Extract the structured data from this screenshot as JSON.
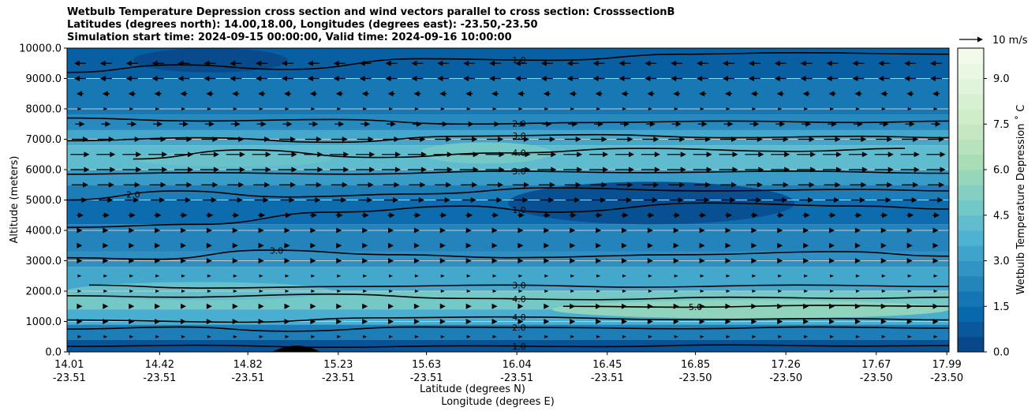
{
  "titles": {
    "line1": "Wetbulb Temperature Depression cross section and wind vectors parallel to cross section: CrosssectionB",
    "line2": "Latitudes (degrees north): 14.00,18.00, Longitudes (degrees east): -23.50,-23.50",
    "line3": "Simulation start time: 2024-09-15 00:00:00, Valid time: 2024-09-16 10:00:00"
  },
  "colors": {
    "colormap": [
      "#084081",
      "#0868ac",
      "#2b8cbe",
      "#4eb3d3",
      "#7bccc4",
      "#a8ddb5",
      "#ccebc5",
      "#e0f3db",
      "#f7fcf0"
    ],
    "contour_line": "#000000",
    "gridline": "#c8c8c8",
    "terrain": "#000000"
  },
  "chart_data": {
    "type": "heatmap",
    "subtype": "cross-section filled contour with wind vectors",
    "xlabel_lat": "Latitude (degrees N)",
    "xlabel_lon": "Longitude (degrees E)",
    "ylabel": "Altitude (meters)",
    "colorbar_label": "Wetbulb Temperature Depression ˚ C",
    "xlim": [
      14.0,
      18.0
    ],
    "ylim": [
      0,
      10000
    ],
    "x_ticks": [
      {
        "lat": "14.01",
        "lon": "-23.51"
      },
      {
        "lat": "14.42",
        "lon": "-23.51"
      },
      {
        "lat": "14.82",
        "lon": "-23.51"
      },
      {
        "lat": "15.23",
        "lon": "-23.51"
      },
      {
        "lat": "15.63",
        "lon": "-23.51"
      },
      {
        "lat": "16.04",
        "lon": "-23.51"
      },
      {
        "lat": "16.45",
        "lon": "-23.51"
      },
      {
        "lat": "16.85",
        "lon": "-23.50"
      },
      {
        "lat": "17.26",
        "lon": "-23.50"
      },
      {
        "lat": "17.67",
        "lon": "-23.50"
      },
      {
        "lat": "17.99",
        "lon": "-23.50"
      }
    ],
    "y_ticks": [
      "0.0",
      "1000.0",
      "2000.0",
      "3000.0",
      "4000.0",
      "5000.0",
      "6000.0",
      "7000.0",
      "8000.0",
      "9000.0",
      "10000.0"
    ],
    "colorbar_ticks": [
      "0.0",
      "1.5",
      "3.0",
      "4.5",
      "6.0",
      "7.5",
      "9.0"
    ],
    "colorbar_range": [
      0,
      10
    ],
    "grid": "horizontal",
    "vector_key": {
      "label": "10 m/s",
      "speed": 10
    },
    "wind_levels": [
      {
        "altitude": 9500,
        "speed": -5
      },
      {
        "altitude": 9000,
        "speed": -5
      },
      {
        "altitude": 8500,
        "speed": -3
      },
      {
        "altitude": 8000,
        "speed": 1
      },
      {
        "altitude": 7500,
        "speed": 4
      },
      {
        "altitude": 7000,
        "speed": 7
      },
      {
        "altitude": 6500,
        "speed": 8
      },
      {
        "altitude": 6000,
        "speed": 8
      },
      {
        "altitude": 5500,
        "speed": 7
      },
      {
        "altitude": 5000,
        "speed": 6
      },
      {
        "altitude": 4500,
        "speed": 3
      },
      {
        "altitude": 4000,
        "speed": 2
      },
      {
        "altitude": 3500,
        "speed": 2
      },
      {
        "altitude": 3000,
        "speed": 2
      },
      {
        "altitude": 2500,
        "speed": 1
      },
      {
        "altitude": 2000,
        "speed": 1
      },
      {
        "altitude": 1500,
        "speed": 2
      },
      {
        "altitude": 1000,
        "speed": 2
      },
      {
        "altitude": 500,
        "speed": 1
      }
    ],
    "background_bands": [
      {
        "from": 0,
        "to": 400,
        "value": 0.6
      },
      {
        "from": 400,
        "to": 900,
        "value": 2.0
      },
      {
        "from": 900,
        "to": 1400,
        "value": 3.6
      },
      {
        "from": 1400,
        "to": 2000,
        "value": 4.8
      },
      {
        "from": 2000,
        "to": 2800,
        "value": 3.4
      },
      {
        "from": 2800,
        "to": 3300,
        "value": 2.6
      },
      {
        "from": 3300,
        "to": 4200,
        "value": 2.2
      },
      {
        "from": 4200,
        "to": 5000,
        "value": 1.4
      },
      {
        "from": 5000,
        "to": 5500,
        "value": 2.0
      },
      {
        "from": 5500,
        "to": 6000,
        "value": 3.0
      },
      {
        "from": 6000,
        "to": 6800,
        "value": 4.2
      },
      {
        "from": 6800,
        "to": 7300,
        "value": 3.4
      },
      {
        "from": 7300,
        "to": 7800,
        "value": 2.4
      },
      {
        "from": 7800,
        "to": 9000,
        "value": 1.8
      },
      {
        "from": 9000,
        "to": 10000,
        "value": 1.0
      }
    ],
    "patches": [
      {
        "x0": 16.0,
        "x1": 17.3,
        "y0": 4200,
        "y1": 5600,
        "value": 0.5
      },
      {
        "x0": 16.2,
        "x1": 18.0,
        "y0": 1100,
        "y1": 1700,
        "value": 5.6
      },
      {
        "x0": 15.6,
        "x1": 16.2,
        "y0": 6200,
        "y1": 6900,
        "value": 4.8
      },
      {
        "x0": 14.3,
        "x1": 15.2,
        "y0": 6100,
        "y1": 6600,
        "value": 4.5
      },
      {
        "x0": 14.0,
        "x1": 15.2,
        "y0": 1700,
        "y1": 2300,
        "value": 4.4
      },
      {
        "x0": 14.3,
        "x1": 15.0,
        "y0": 9200,
        "y1": 10000,
        "value": 0.3
      }
    ],
    "contours": [
      {
        "label": "1.0",
        "label_at": 16.05,
        "points": [
          [
            14.0,
            180
          ],
          [
            14.6,
            220
          ],
          [
            15.2,
            150
          ],
          [
            15.8,
            200
          ],
          [
            16.4,
            170
          ],
          [
            17.0,
            230
          ],
          [
            17.6,
            190
          ],
          [
            18.0,
            210
          ]
        ]
      },
      {
        "label": "2.0",
        "label_at": 16.05,
        "points": [
          [
            14.0,
            750
          ],
          [
            14.5,
            820
          ],
          [
            15.0,
            680
          ],
          [
            15.6,
            820
          ],
          [
            16.2,
            800
          ],
          [
            16.8,
            760
          ],
          [
            17.4,
            820
          ],
          [
            18.0,
            780
          ]
        ]
      },
      {
        "label": "4.0",
        "label_at": 16.05,
        "points": [
          [
            14.0,
            1050
          ],
          [
            14.8,
            980
          ],
          [
            15.4,
            1120
          ],
          [
            16.0,
            1150
          ],
          [
            16.8,
            1060
          ],
          [
            17.5,
            1100
          ],
          [
            18.0,
            1050
          ]
        ]
      },
      {
        "label": "5.0",
        "label_at": 16.85,
        "points": [
          [
            16.25,
            1500
          ],
          [
            16.8,
            1470
          ],
          [
            17.4,
            1530
          ],
          [
            18.0,
            1500
          ]
        ]
      },
      {
        "label": "4.0",
        "label_at": 16.05,
        "points": [
          [
            14.0,
            1850
          ],
          [
            14.5,
            1800
          ],
          [
            15.2,
            1900
          ],
          [
            15.8,
            1760
          ],
          [
            16.4,
            1720
          ],
          [
            17.0,
            1800
          ],
          [
            17.6,
            1760
          ],
          [
            18.0,
            1800
          ]
        ]
      },
      {
        "label": "3.0",
        "label_at": 16.05,
        "points": [
          [
            14.1,
            2200
          ],
          [
            14.6,
            2100
          ],
          [
            15.3,
            2150
          ],
          [
            16.0,
            2200
          ],
          [
            16.6,
            2130
          ],
          [
            17.3,
            2200
          ],
          [
            18.0,
            2150
          ]
        ]
      },
      {
        "label": "3.0",
        "label_at": 14.95,
        "points": [
          [
            14.0,
            3100
          ],
          [
            14.4,
            3050
          ],
          [
            14.9,
            3350
          ],
          [
            15.5,
            3200
          ],
          [
            16.0,
            3100
          ],
          [
            16.8,
            3200
          ],
          [
            17.5,
            3300
          ],
          [
            18.0,
            3150
          ]
        ]
      },
      {
        "label": "1.0",
        "label_at": 16.05,
        "points": [
          [
            14.0,
            4100
          ],
          [
            14.6,
            4200
          ],
          [
            15.2,
            4600
          ],
          [
            15.8,
            4800
          ],
          [
            16.2,
            4600
          ],
          [
            16.9,
            4900
          ],
          [
            17.6,
            4800
          ],
          [
            18.0,
            4700
          ]
        ]
      },
      {
        "label": "2.0",
        "label_at": 14.3,
        "points": [
          [
            14.0,
            5000
          ],
          [
            14.5,
            5300
          ],
          [
            15.0,
            5100
          ],
          [
            15.6,
            5200
          ],
          [
            16.2,
            5400
          ],
          [
            16.9,
            5300
          ],
          [
            17.6,
            5350
          ],
          [
            18.0,
            5300
          ]
        ]
      },
      {
        "label": "3.0",
        "label_at": 16.05,
        "points": [
          [
            14.0,
            5850
          ],
          [
            14.6,
            5900
          ],
          [
            15.3,
            5850
          ],
          [
            16.0,
            5950
          ],
          [
            16.6,
            5900
          ],
          [
            17.3,
            5950
          ],
          [
            18.0,
            5880
          ]
        ]
      },
      {
        "label": "4.0",
        "label_at": 16.05,
        "points": [
          [
            14.3,
            6350
          ],
          [
            14.8,
            6650
          ],
          [
            15.4,
            6400
          ],
          [
            16.0,
            6550
          ],
          [
            16.6,
            6700
          ],
          [
            17.3,
            6600
          ],
          [
            17.8,
            6700
          ]
        ]
      },
      {
        "label": "3.0",
        "label_at": 16.05,
        "points": [
          [
            14.0,
            6950
          ],
          [
            14.6,
            7050
          ],
          [
            15.2,
            6900
          ],
          [
            15.8,
            7100
          ],
          [
            16.4,
            7150
          ],
          [
            17.0,
            7050
          ],
          [
            17.6,
            7100
          ],
          [
            18.0,
            7050
          ]
        ]
      },
      {
        "label": "2.0",
        "label_at": 16.05,
        "points": [
          [
            14.0,
            7700
          ],
          [
            14.6,
            7600
          ],
          [
            15.2,
            7650
          ],
          [
            15.8,
            7500
          ],
          [
            16.4,
            7550
          ],
          [
            17.0,
            7600
          ],
          [
            17.6,
            7550
          ],
          [
            18.0,
            7600
          ]
        ]
      },
      {
        "label": "1.0",
        "label_at": 16.05,
        "points": [
          [
            14.0,
            9200
          ],
          [
            14.5,
            9450
          ],
          [
            15.0,
            9300
          ],
          [
            15.6,
            9650
          ],
          [
            16.2,
            9600
          ],
          [
            16.8,
            9800
          ],
          [
            17.3,
            9850
          ],
          [
            18.0,
            9800
          ]
        ]
      }
    ]
  }
}
